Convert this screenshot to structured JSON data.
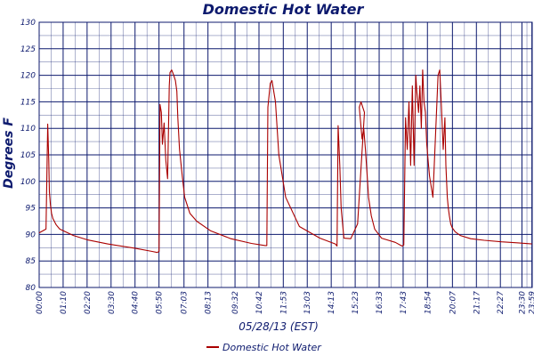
{
  "chart_data": {
    "type": "line",
    "title": "Domestic Hot Water",
    "xlabel": "05/28/13 (EST)",
    "ylabel": "Degrees F",
    "ylim": [
      80,
      130
    ],
    "yticks": [
      "80",
      "85",
      "90",
      "95",
      "100",
      "105",
      "110",
      "115",
      "120",
      "125",
      "130"
    ],
    "xlim": [
      0,
      1440
    ],
    "xticks": [
      "00:00",
      "01:10",
      "02:20",
      "03:30",
      "04:40",
      "05:50",
      "07:03",
      "08:13",
      "09:32",
      "10:42",
      "11:53",
      "13:03",
      "14:13",
      "15:23",
      "16:33",
      "17:43",
      "18:54",
      "20:07",
      "21:17",
      "22:27",
      "23:30",
      "23:59"
    ],
    "xtick_minutes": [
      0,
      70,
      140,
      210,
      280,
      350,
      423,
      493,
      572,
      642,
      713,
      783,
      853,
      923,
      993,
      1063,
      1134,
      1207,
      1277,
      1347,
      1410,
      1439
    ],
    "grid": true,
    "legend_position": "bottom",
    "colors": {
      "series": "#aa0000",
      "grid": "#0d1a6e",
      "text": "#0d1a6e"
    },
    "series": [
      {
        "name": "Domestic Hot Water",
        "x": [
          0,
          20,
          25,
          28,
          30,
          33,
          36,
          40,
          50,
          60,
          80,
          100,
          140,
          200,
          280,
          330,
          345,
          350,
          353,
          357,
          360,
          365,
          370,
          375,
          380,
          382,
          387,
          393,
          398,
          402,
          405,
          410,
          418,
          425,
          440,
          460,
          500,
          560,
          620,
          660,
          665,
          668,
          675,
          680,
          690,
          700,
          720,
          760,
          820,
          865,
          870,
          873,
          878,
          882,
          890,
          910,
          930,
          950,
          940,
          935,
          943,
          948,
          953,
          958,
          962,
          970,
          980,
          1000,
          1040,
          1060,
          1065,
          1070,
          1075,
          1080,
          1085,
          1090,
          1095,
          1100,
          1103,
          1108,
          1112,
          1116,
          1120,
          1124,
          1128,
          1132,
          1136,
          1140,
          1150,
          1165,
          1170,
          1175,
          1180,
          1185,
          1188,
          1192,
          1195,
          1198,
          1202,
          1206,
          1215,
          1230,
          1260,
          1300,
          1350,
          1400,
          1439
        ],
        "y": [
          90.3,
          91,
          110.8,
          104,
          98,
          95.5,
          94,
          93,
          91.8,
          91,
          90.4,
          89.8,
          89,
          88.2,
          87.4,
          86.8,
          86.6,
          86.8,
          114.5,
          113,
          107,
          111,
          104,
          100.5,
          118,
          120.5,
          121,
          120,
          119,
          117,
          112,
          106,
          101,
          97,
          94,
          92.5,
          90.7,
          89.2,
          88.3,
          87.9,
          87.9,
          114,
          118.5,
          119,
          115,
          105,
          97,
          91.5,
          89.3,
          88.2,
          87.8,
          110.5,
          103,
          95,
          89.3,
          89.2,
          92,
          113,
          115,
          114,
          108,
          110,
          106,
          101,
          97,
          93.5,
          91,
          89.3,
          88.5,
          87.8,
          88,
          112,
          106,
          115,
          103,
          118,
          103,
          120,
          117,
          113,
          118,
          110,
          121,
          115,
          113,
          107,
          104,
          101,
          97,
          120,
          121,
          114,
          106,
          112,
          103,
          97,
          95,
          93.5,
          92,
          91.3,
          90.5,
          89.8,
          89.2,
          88.9,
          88.6,
          88.4,
          88.2
        ]
      }
    ]
  }
}
